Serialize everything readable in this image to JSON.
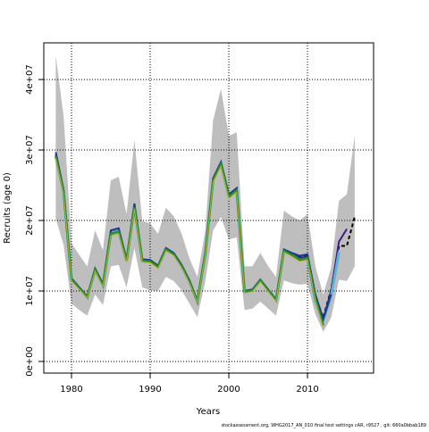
{
  "chart_data": {
    "type": "line",
    "xlabel": "Years",
    "ylabel": "Recruits (age 0)",
    "footer": "stockassessment.org, WHG2017_AN_010 final test settings cAR, r9527 , git: 660a0bbab189",
    "x": [
      1978,
      1979,
      1980,
      1981,
      1982,
      1983,
      1984,
      1985,
      1986,
      1987,
      1988,
      1989,
      1990,
      1991,
      1992,
      1993,
      1994,
      1995,
      1996,
      1997,
      1998,
      1999,
      2000,
      2001,
      2002,
      2003,
      2004,
      2005,
      2006,
      2007,
      2008,
      2009,
      2010,
      2011,
      2012,
      2013,
      2014,
      2015,
      2016
    ],
    "band": {
      "color": "#bebebe",
      "upper": [
        43400000.0,
        34800000.0,
        16800000.0,
        15100000.0,
        13500000.0,
        18600000.0,
        15800000.0,
        25700000.0,
        26200000.0,
        20900000.0,
        31400000.0,
        19900000.0,
        19600000.0,
        18100000.0,
        21800000.0,
        20600000.0,
        18100000.0,
        14600000.0,
        12000000.0,
        18600000.0,
        34200000.0,
        38700000.0,
        32000000.0,
        32500000.0,
        13500000.0,
        13500000.0,
        15400000.0,
        13500000.0,
        12000000.0,
        21400000.0,
        20600000.0,
        20000000.0,
        20900000.0,
        13500000.0,
        9500000.0,
        13300000.0,
        22800000.0,
        23700000.0,
        32000000.0
      ],
      "lower": [
        20300000.0,
        16500000.0,
        8200000.0,
        7300000.0,
        6500000.0,
        9500000.0,
        8000000.0,
        13500000.0,
        13700000.0,
        10500000.0,
        16100000.0,
        10500000.0,
        10100000.0,
        10000000.0,
        12000000.0,
        11400000.0,
        10100000.0,
        8200000.0,
        6300000.0,
        11300000.0,
        18600000.0,
        20500000.0,
        17300000.0,
        17600000.0,
        7300000.0,
        7500000.0,
        8500000.0,
        7500000.0,
        6500000.0,
        11500000.0,
        11100000.0,
        10900000.0,
        11000000.0,
        6700000.0,
        4200000.0,
        6200000.0,
        11600000.0,
        11400000.0,
        13500000.0
      ]
    },
    "series": [
      {
        "color": "#000000",
        "dashed": true,
        "width": 2,
        "values": [
          29300000.0,
          24200000.0,
          11700000.0,
          10500000.0,
          9200000.0,
          13100000.0,
          10900000.0,
          18300000.0,
          18600000.0,
          14400000.0,
          22100000.0,
          14400000.0,
          14300000.0,
          13500000.0,
          16000000.0,
          15300000.0,
          13600000.0,
          11400000.0,
          8600000.0,
          15300000.0,
          25900000.0,
          28200000.0,
          23600000.0,
          24500000.0,
          10000000.0,
          10200000.0,
          11600000.0,
          10200000.0,
          8800000.0,
          15800000.0,
          15200000.0,
          14800000.0,
          15000000.0,
          9300000.0,
          6200000.0,
          10200000.0,
          16400000.0,
          16400000.0,
          20500000.0
        ]
      },
      {
        "color": "#3b1f8a",
        "dashed": false,
        "width": 2,
        "values": [
          29300000.0,
          24200000.0,
          11700000.0,
          10500000.0,
          9200000.0,
          13100000.0,
          10900000.0,
          18300000.0,
          18600000.0,
          14400000.0,
          22100000.0,
          14400000.0,
          14300000.0,
          13500000.0,
          16000000.0,
          15300000.0,
          13600000.0,
          11400000.0,
          8600000.0,
          15300000.0,
          25900000.0,
          28200000.0,
          23600000.0,
          24500000.0,
          10000000.0,
          10200000.0,
          11600000.0,
          10200000.0,
          8800000.0,
          15800000.0,
          15200000.0,
          14700000.0,
          14900000.0,
          9100000.0,
          6000000.0,
          10000000.0,
          17000000.0,
          18800000.0,
          null
        ]
      },
      {
        "color": "#5ab4d6",
        "dashed": false,
        "width": 3,
        "values": [
          29200000.0,
          24100000.0,
          11600000.0,
          10400000.0,
          9100000.0,
          13000000.0,
          10800000.0,
          18200000.0,
          18500000.0,
          14300000.0,
          22000000.0,
          14300000.0,
          14200000.0,
          13400000.0,
          15900000.0,
          15200000.0,
          13500000.0,
          11300000.0,
          8500000.0,
          15200000.0,
          25800000.0,
          28100000.0,
          23500000.0,
          24400000.0,
          9900000.0,
          10100000.0,
          11500000.0,
          10100000.0,
          8700000.0,
          15700000.0,
          15100000.0,
          14400000.0,
          14600000.0,
          8500000.0,
          5800000.0,
          9200000.0,
          15500000.0,
          null,
          null
        ]
      },
      {
        "color": "#1a3a8a",
        "dashed": false,
        "width": 2,
        "values": [
          29700000.0,
          24300000.0,
          11800000.0,
          10500000.0,
          9200000.0,
          13200000.0,
          11000000.0,
          18600000.0,
          18900000.0,
          14500000.0,
          22400000.0,
          14500000.0,
          14400000.0,
          13600000.0,
          16100000.0,
          15400000.0,
          13700000.0,
          11500000.0,
          8600000.0,
          15400000.0,
          26000000.0,
          28300000.0,
          23700000.0,
          24600000.0,
          10000000.0,
          10200000.0,
          11600000.0,
          10200000.0,
          8800000.0,
          15900000.0,
          15400000.0,
          15000000.0,
          15200000.0,
          9500000.0,
          6000000.0,
          9500000.0,
          null,
          null,
          null
        ]
      },
      {
        "color": "#2e8b2e",
        "dashed": false,
        "width": 2.5,
        "values": [
          29100000.0,
          24000000.0,
          11600000.0,
          10400000.0,
          9100000.0,
          13000000.0,
          10800000.0,
          18100000.0,
          18400000.0,
          14300000.0,
          21900000.0,
          14300000.0,
          14200000.0,
          13400000.0,
          15900000.0,
          15200000.0,
          13500000.0,
          11300000.0,
          8500000.0,
          15200000.0,
          25700000.0,
          28000000.0,
          23400000.0,
          24300000.0,
          9900000.0,
          10100000.0,
          11500000.0,
          10100000.0,
          8700000.0,
          15700000.0,
          15100000.0,
          14400000.0,
          14700000.0,
          8900000.0,
          5100000.0,
          null,
          null,
          null,
          null
        ]
      },
      {
        "color": "#b5b52a",
        "dashed": false,
        "width": 1,
        "values": [
          28800000.0,
          23700000.0,
          11400000.0,
          10200000.0,
          9000000.0,
          12800000.0,
          10600000.0,
          17800000.0,
          18100000.0,
          14100000.0,
          21600000.0,
          14100000.0,
          14000000.0,
          13200000.0,
          15700000.0,
          15000000.0,
          13300000.0,
          11100000.0,
          8400000.0,
          15000000.0,
          25400000.0,
          27700000.0,
          23100000.0,
          24000000.0,
          9700000.0,
          9900000.0,
          11300000.0,
          9900000.0,
          8500000.0,
          15500000.0,
          14900000.0,
          14200000.0,
          14400000.0,
          8600000.0,
          4800000.0,
          null,
          null,
          null,
          null
        ]
      }
    ],
    "xlim": [
      1976.48,
      2018.4
    ],
    "xticks": [
      1980,
      1990,
      2000,
      2010
    ],
    "ylim": [
      -1650000.0,
      45200000.0
    ],
    "yticks": [
      {
        "value": 0,
        "label": "0e+00"
      },
      {
        "value": 10000000.0,
        "label": "1e+07"
      },
      {
        "value": 20000000.0,
        "label": "2e+07"
      },
      {
        "value": 30000000.0,
        "label": "3e+07"
      },
      {
        "value": 40000000.0,
        "label": "4e+07"
      }
    ],
    "grid": true
  }
}
